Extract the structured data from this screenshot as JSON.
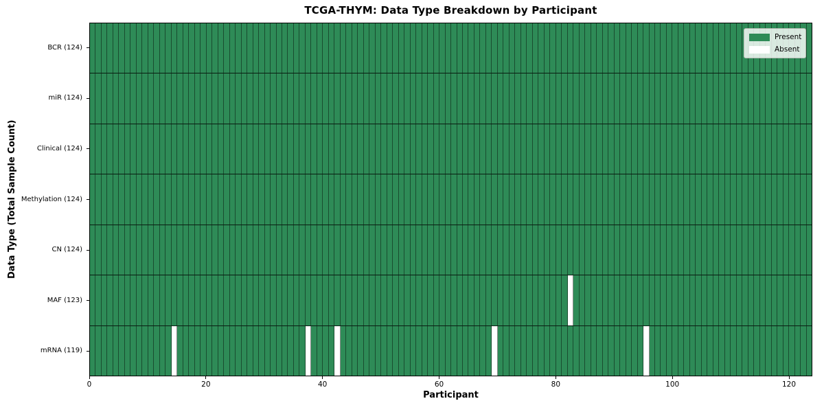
{
  "chart_data": {
    "type": "heatmap",
    "title": "TCGA-THYM: Data Type Breakdown by Participant",
    "xlabel": "Participant",
    "ylabel": "Data Type (Total Sample Count)",
    "x_ticks": [
      0,
      20,
      40,
      60,
      80,
      100,
      120
    ],
    "x_range": [
      0,
      124
    ],
    "n_participants": 124,
    "rows": [
      {
        "label": "BCR (124)",
        "present_count": 124,
        "absent_participants": []
      },
      {
        "label": "miR (124)",
        "present_count": 124,
        "absent_participants": []
      },
      {
        "label": "Clinical (124)",
        "present_count": 124,
        "absent_participants": []
      },
      {
        "label": "Methylation (124)",
        "present_count": 124,
        "absent_participants": []
      },
      {
        "label": "CN (124)",
        "present_count": 124,
        "absent_participants": []
      },
      {
        "label": "MAF (123)",
        "present_count": 123,
        "absent_participants": [
          82
        ]
      },
      {
        "label": "mRNA (119)",
        "present_count": 119,
        "absent_participants": [
          14,
          37,
          42,
          69,
          95
        ]
      }
    ],
    "legend": {
      "position": "upper-right",
      "entries": [
        {
          "label": "Present",
          "color": "#2e8b57"
        },
        {
          "label": "Absent",
          "color": "#ffffff"
        }
      ]
    },
    "colors": {
      "present": "#2e8b57",
      "absent": "#ffffff",
      "cell_border": "rgba(0,0,0,0.45)",
      "row_border": "rgba(0,0,0,0.8)",
      "spine": "#000000"
    },
    "grid": "cell-borders"
  }
}
